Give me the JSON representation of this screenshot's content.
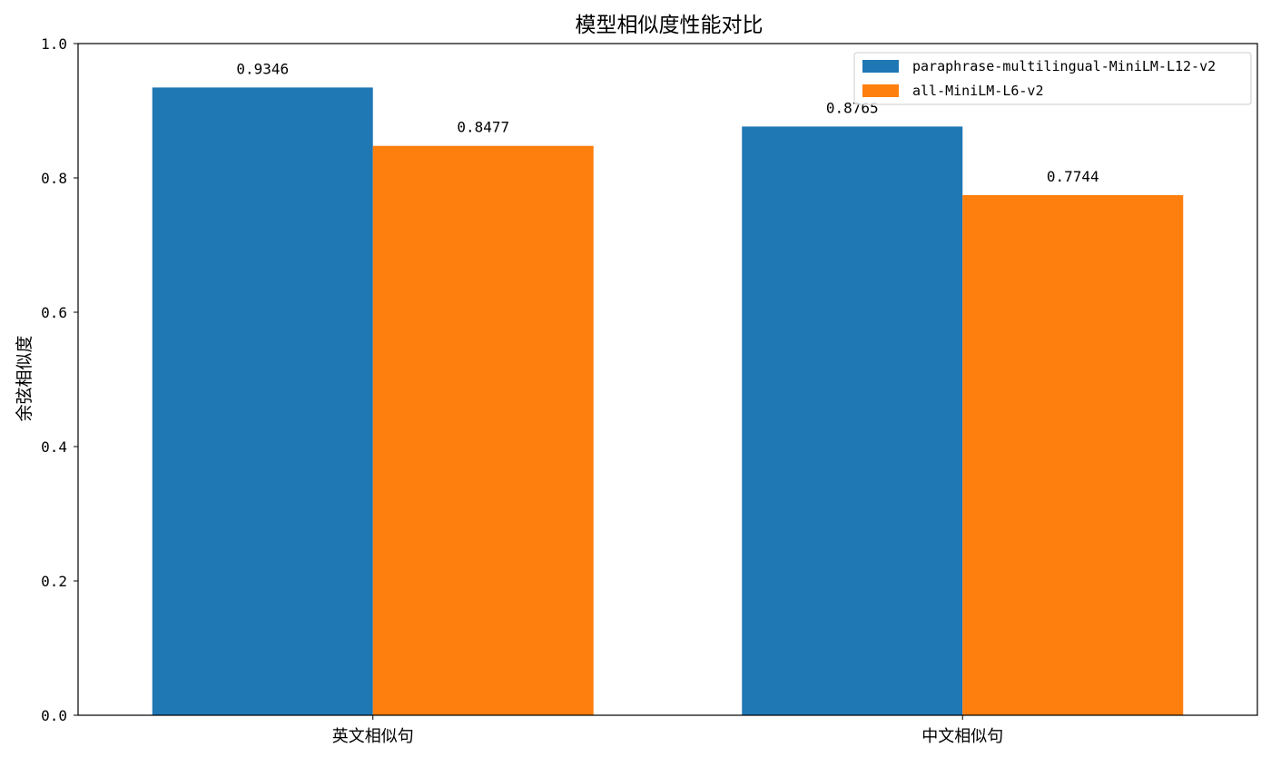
{
  "chart_data": {
    "type": "bar",
    "title": "模型相似度性能对比",
    "xlabel": "",
    "ylabel": "余弦相似度",
    "categories": [
      "英文相似句",
      "中文相似句"
    ],
    "series": [
      {
        "name": "paraphrase-multilingual-MiniLM-L12-v2",
        "values": [
          0.9346,
          0.8765
        ],
        "color": "#1f77b4"
      },
      {
        "name": "all-MiniLM-L6-v2",
        "values": [
          0.8477,
          0.7744
        ],
        "color": "#ff7f0e"
      }
    ],
    "ylim": [
      0,
      1.0
    ],
    "yticks": [
      "0.0",
      "0.2",
      "0.4",
      "0.6",
      "0.8",
      "1.0"
    ],
    "data_labels": [
      [
        "0.9346",
        "0.8765"
      ],
      [
        "0.8477",
        "0.7744"
      ]
    ],
    "grid": false,
    "legend_position": "top-right"
  }
}
